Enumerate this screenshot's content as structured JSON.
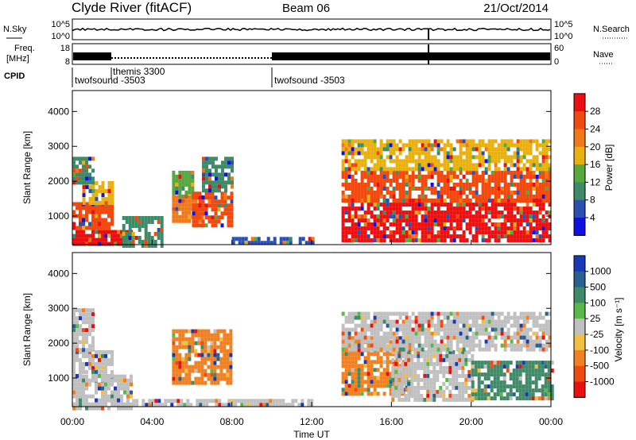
{
  "header": {
    "station": "Clyde River (fitACF)",
    "beam": "Beam 06",
    "date": "21/Oct/2014"
  },
  "noise_panel": {
    "left_label": "N.Sky",
    "right_label": "N.Search",
    "left_ticks": [
      "10^5",
      "10^0"
    ],
    "right_ticks": [
      "10^5",
      "10^0"
    ]
  },
  "freq_panel": {
    "left_label_line1": "Freq.",
    "left_label_line2": "[MHz]",
    "right_label": "Nave",
    "left_ticks": [
      "18",
      "8"
    ],
    "right_ticks": [
      "60",
      "0"
    ]
  },
  "cpid": {
    "label": "CPID",
    "segments": [
      {
        "name": "twofsound -3503",
        "start_h": 0.0,
        "end_h": 2.0
      },
      {
        "name": "themis 3300",
        "start_h": 2.0,
        "end_h": 10.0
      },
      {
        "name": "twofsound -3503",
        "start_h": 10.0,
        "end_h": 24.0
      }
    ]
  },
  "time_axis": {
    "label": "Time UT",
    "ticks": [
      "00:00",
      "04:00",
      "08:00",
      "12:00",
      "16:00",
      "20:00",
      "00:00"
    ]
  },
  "power_panel": {
    "ylabel": "Slant Range [km]",
    "yticks": [
      "1000",
      "2000",
      "3000",
      "4000"
    ],
    "colorbar_label": "Power [dB]",
    "colorbar_ticks": [
      "4",
      "8",
      "12",
      "16",
      "20",
      "24",
      "28"
    ],
    "colors": [
      "#1010e0",
      "#2a4fb0",
      "#3f8a68",
      "#58a840",
      "#e8b010",
      "#f07818",
      "#f04a10",
      "#e81010"
    ]
  },
  "velocity_panel": {
    "ylabel": "Slant Range [km]",
    "yticks": [
      "1000",
      "2000",
      "3000",
      "4000"
    ],
    "colorbar_label": "Velocity [m s⁻¹]",
    "colorbar_ticks": [
      "1000",
      "500",
      "100",
      "25",
      "-25",
      "-100",
      "-500",
      "-1000"
    ],
    "colors": [
      "#1838b8",
      "#2a6090",
      "#3f8a68",
      "#58b848",
      "#c0c0c0",
      "#f0c040",
      "#f08020",
      "#f04a10",
      "#e81010"
    ]
  },
  "chart_data": [
    {
      "type": "heatmap",
      "title": "Power",
      "xlabel": "Time UT",
      "ylabel": "Slant Range [km]",
      "xlim": [
        0,
        24
      ],
      "ylim": [
        180,
        4600
      ],
      "color_range": [
        0,
        32
      ],
      "cells": [
        {
          "t": [
            0.0,
            3.0
          ],
          "r": [
            180,
            600
          ],
          "value": 28
        },
        {
          "t": [
            0.0,
            2.0
          ],
          "r": [
            700,
            1400
          ],
          "value": 24
        },
        {
          "t": [
            0.5,
            2.0
          ],
          "r": [
            1400,
            2000
          ],
          "value": 16
        },
        {
          "t": [
            0.0,
            1.0
          ],
          "r": [
            2000,
            2700
          ],
          "value": 10
        },
        {
          "t": [
            2.5,
            4.5
          ],
          "r": [
            180,
            1000
          ],
          "value": 8
        },
        {
          "t": [
            5.0,
            6.5
          ],
          "r": [
            900,
            1600
          ],
          "value": 22
        },
        {
          "t": [
            5.0,
            6.0
          ],
          "r": [
            1600,
            2300
          ],
          "value": 12
        },
        {
          "t": [
            6.0,
            8.0
          ],
          "r": [
            700,
            1700
          ],
          "value": 26
        },
        {
          "t": [
            6.5,
            8.0
          ],
          "r": [
            1700,
            2700
          ],
          "value": 8
        },
        {
          "t": [
            8.0,
            12.0
          ],
          "r": [
            180,
            400
          ],
          "value": 6
        },
        {
          "t": [
            13.5,
            24.0
          ],
          "r": [
            300,
            1500
          ],
          "value": 28
        },
        {
          "t": [
            13.5,
            24.0
          ],
          "r": [
            1500,
            2300
          ],
          "value": 24
        },
        {
          "t": [
            13.5,
            24.0
          ],
          "r": [
            2300,
            3200
          ],
          "value": 16
        }
      ]
    },
    {
      "type": "heatmap",
      "title": "Velocity",
      "xlabel": "Time UT",
      "ylabel": "Slant Range [km]",
      "xlim": [
        0,
        24
      ],
      "ylim": [
        180,
        4600
      ],
      "color_range": [
        -1000,
        1000
      ],
      "cells": [
        {
          "t": [
            0.0,
            3.0
          ],
          "r": [
            180,
            1100
          ],
          "value": 100
        },
        {
          "t": [
            0.0,
            2.0
          ],
          "r": [
            1000,
            1800
          ],
          "value": -100
        },
        {
          "t": [
            0.0,
            1.0
          ],
          "r": [
            1800,
            3000
          ],
          "value": 0
        },
        {
          "t": [
            5.0,
            8.0
          ],
          "r": [
            900,
            2400
          ],
          "value": -500
        },
        {
          "t": [
            3.0,
            12.0
          ],
          "r": [
            180,
            400
          ],
          "value": -100
        },
        {
          "t": [
            13.5,
            17.0
          ],
          "r": [
            500,
            2200
          ],
          "value": -500
        },
        {
          "t": [
            16.0,
            20.0
          ],
          "r": [
            400,
            1800
          ],
          "value": 100
        },
        {
          "t": [
            20.0,
            24.0
          ],
          "r": [
            400,
            1500
          ],
          "value": 500
        },
        {
          "t": [
            13.5,
            24.0
          ],
          "r": [
            1800,
            2900
          ],
          "value": -100
        }
      ]
    }
  ]
}
